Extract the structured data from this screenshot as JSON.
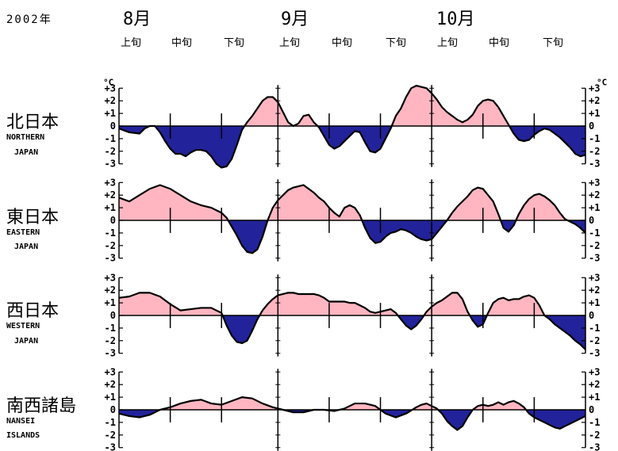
{
  "header": {
    "year": "2002年",
    "months": [
      "8月",
      "9月",
      "10月"
    ],
    "dekads": [
      "上旬",
      "中旬",
      "下旬",
      "上旬",
      "中旬",
      "下旬",
      "上旬",
      "中旬",
      "下旬"
    ]
  },
  "colors": {
    "positive": "#ffb6c1",
    "negative": "#22229a",
    "line": "#000000"
  },
  "chart_data": [
    {
      "type": "area",
      "region_jp": "北日本",
      "region_en": [
        "NORTHERN",
        "JAPAN"
      ],
      "unit_label": "°C",
      "ylim": [
        -3,
        3
      ],
      "yticks": [
        "+3",
        "+2",
        "+1",
        "0",
        "-1",
        "-2",
        "-3"
      ],
      "x_days": [
        1,
        3,
        5,
        6,
        7,
        8,
        9,
        10,
        11,
        12,
        13,
        14,
        15,
        16,
        17,
        18,
        19,
        20,
        21,
        22,
        23,
        24,
        25,
        26,
        27,
        28,
        29,
        30,
        31,
        32,
        33,
        34,
        35,
        36,
        37,
        38,
        39,
        40,
        41,
        42,
        43,
        44,
        45,
        46,
        47,
        48,
        49,
        50,
        51,
        52,
        53,
        54,
        55,
        56,
        57,
        58,
        59,
        60,
        61,
        62,
        63,
        64,
        65,
        66,
        67,
        68,
        69,
        70,
        71,
        72,
        73,
        74,
        75,
        76,
        77,
        78,
        79,
        80,
        81,
        82,
        83,
        84,
        85,
        86,
        87,
        88,
        89,
        90,
        91,
        92
      ],
      "values": [
        -0.2,
        -0.5,
        -0.6,
        -0.2,
        0,
        0,
        -0.5,
        -1.2,
        -1.8,
        -2.2,
        -2.2,
        -2.4,
        -2.1,
        -1.9,
        -1.9,
        -2,
        -2.4,
        -3,
        -3.3,
        -3.2,
        -2.6,
        -1.5,
        -0.3,
        0.3,
        0.8,
        1.4,
        2,
        2.3,
        2.3,
        1.9,
        1.1,
        0.3,
        0,
        0.2,
        0.8,
        0.9,
        0.3,
        -0.1,
        -0.8,
        -1.5,
        -1.8,
        -1.6,
        -1.2,
        -0.8,
        -0.4,
        -0.5,
        -1.3,
        -2,
        -2.1,
        -1.8,
        -1,
        -0.2,
        0.8,
        1.4,
        2.3,
        3,
        3.2,
        3.1,
        3,
        2.6,
        2.1,
        1.5,
        1.1,
        0.8,
        0.5,
        0.3,
        0.5,
        0.9,
        1.6,
        2,
        2.1,
        2,
        1.5,
        0.8,
        0.1,
        -0.6,
        -1.1,
        -1.2,
        -1.1,
        -0.7,
        -0.4,
        -0.2,
        -0.3,
        -0.6,
        -0.9,
        -1.3,
        -1.7,
        -2.2,
        -2.4,
        -2.3
      ]
    },
    {
      "type": "area",
      "region_jp": "東日本",
      "region_en": [
        "EASTERN",
        "JAPAN"
      ],
      "ylim": [
        -3,
        3
      ],
      "yticks": [
        "+3",
        "+2",
        "+1",
        "0",
        "-1",
        "-2",
        "-3"
      ],
      "x_days": [
        1,
        3,
        5,
        7,
        9,
        11,
        13,
        15,
        17,
        19,
        21,
        22,
        23,
        24,
        25,
        26,
        27,
        28,
        29,
        30,
        31,
        32,
        33,
        34,
        35,
        36,
        37,
        38,
        39,
        40,
        41,
        42,
        43,
        44,
        45,
        46,
        47,
        48,
        49,
        50,
        51,
        52,
        53,
        54,
        55,
        56,
        57,
        58,
        59,
        60,
        61,
        62,
        63,
        64,
        65,
        66,
        67,
        68,
        69,
        70,
        71,
        72,
        73,
        74,
        75,
        76,
        77,
        78,
        79,
        80,
        81,
        82,
        83,
        84,
        85,
        86,
        87,
        88,
        89,
        90,
        91,
        92
      ],
      "values": [
        1.8,
        1.5,
        2,
        2.5,
        2.8,
        2.5,
        2,
        1.5,
        1.2,
        1,
        0.6,
        0.2,
        -0.5,
        -1.2,
        -2,
        -2.5,
        -2.6,
        -2.3,
        -1.3,
        0,
        1,
        1.6,
        2,
        2.4,
        2.6,
        2.7,
        2.8,
        2.5,
        2.2,
        1.8,
        1.5,
        1,
        0.6,
        0.3,
        1,
        1.2,
        1,
        0.4,
        -0.6,
        -1.4,
        -1.8,
        -1.7,
        -1.3,
        -1,
        -0.9,
        -0.7,
        -0.8,
        -1,
        -1.3,
        -1.5,
        -1.6,
        -1.5,
        -1,
        -0.5,
        0,
        0.6,
        1.1,
        1.5,
        1.9,
        2.4,
        2.6,
        2.5,
        2,
        1.5,
        0.5,
        -0.6,
        -0.9,
        -0.4,
        0.5,
        1.2,
        1.7,
        2,
        2.1,
        1.9,
        1.6,
        1.2,
        0.6,
        0.1,
        -0.1,
        -0.3,
        -0.6,
        -1.0
      ]
    },
    {
      "type": "area",
      "region_jp": "西日本",
      "region_en": [
        "WESTERN",
        "JAPAN"
      ],
      "ylim": [
        -3,
        3
      ],
      "yticks": [
        "+3",
        "+2",
        "+1",
        "0",
        "-1",
        "-2",
        "-3"
      ],
      "x_days": [
        1,
        3,
        5,
        7,
        9,
        11,
        13,
        15,
        17,
        19,
        21,
        22,
        23,
        24,
        25,
        26,
        27,
        28,
        29,
        30,
        31,
        32,
        33,
        34,
        35,
        36,
        37,
        38,
        39,
        40,
        41,
        42,
        43,
        44,
        45,
        46,
        47,
        48,
        49,
        50,
        51,
        52,
        53,
        54,
        55,
        56,
        57,
        58,
        59,
        60,
        61,
        62,
        63,
        64,
        65,
        66,
        67,
        68,
        69,
        70,
        71,
        72,
        73,
        74,
        75,
        76,
        77,
        78,
        79,
        80,
        81,
        82,
        83,
        84,
        85,
        86,
        87,
        88,
        89,
        90,
        91,
        92
      ],
      "values": [
        1.4,
        1.5,
        1.8,
        1.8,
        1.5,
        0.9,
        0.4,
        0.5,
        0.6,
        0.6,
        0.2,
        -0.8,
        -1.6,
        -2.1,
        -2.2,
        -2,
        -1.2,
        -0.3,
        0.4,
        0.9,
        1.3,
        1.6,
        1.7,
        1.8,
        1.8,
        1.7,
        1.7,
        1.7,
        1.7,
        1.6,
        1.4,
        1.1,
        1.1,
        1.1,
        1.1,
        1.0,
        1.0,
        0.8,
        0.6,
        0.3,
        0.2,
        0.3,
        0.4,
        0.5,
        0.2,
        -0.3,
        -0.8,
        -1.1,
        -0.8,
        -0.3,
        0.3,
        0.7,
        1.0,
        1.2,
        1.5,
        1.8,
        1.8,
        1.3,
        0.3,
        -0.4,
        -0.9,
        -0.7,
        0.2,
        1.0,
        1.3,
        1.4,
        1.2,
        1.3,
        1.3,
        1.5,
        1.6,
        1.4,
        0.8,
        0,
        -0.3,
        -0.7,
        -1.0,
        -1.3,
        -1.6,
        -2,
        -2.3,
        -2.7
      ]
    },
    {
      "type": "area",
      "region_jp": "南西諸島",
      "region_en": [
        "NANSEI",
        "ISLANDS"
      ],
      "ylim": [
        -3,
        3
      ],
      "yticks": [
        "+3",
        "+2",
        "+1",
        "0",
        "-1",
        "-2",
        "-3"
      ],
      "x_days": [
        1,
        3,
        5,
        7,
        9,
        11,
        13,
        15,
        17,
        19,
        21,
        23,
        25,
        27,
        29,
        31,
        33,
        35,
        37,
        39,
        41,
        43,
        45,
        47,
        49,
        51,
        53,
        55,
        57,
        59,
        60,
        61,
        62,
        63,
        64,
        65,
        66,
        67,
        68,
        69,
        70,
        71,
        72,
        73,
        74,
        75,
        76,
        77,
        78,
        79,
        80,
        81,
        82,
        83,
        84,
        85,
        86,
        87,
        88,
        89,
        90,
        91,
        92
      ],
      "values": [
        -0.3,
        -0.5,
        -0.6,
        -0.4,
        0,
        0.2,
        0.5,
        0.7,
        0.8,
        0.5,
        0.4,
        0.7,
        1.0,
        0.9,
        0.5,
        0.2,
        0,
        -0.2,
        -0.2,
        0,
        0,
        -0.1,
        0.1,
        0.5,
        0.5,
        0.3,
        -0.3,
        -0.6,
        -0.3,
        0.2,
        0.4,
        0.5,
        0.3,
        0.1,
        -0.3,
        -0.9,
        -1.3,
        -1.6,
        -1.3,
        -0.6,
        0,
        0.3,
        0.4,
        0.3,
        0.4,
        0.6,
        0.4,
        0.6,
        0.7,
        0.5,
        0.2,
        -0.3,
        -0.6,
        -0.8,
        -1,
        -1.2,
        -1.4,
        -1.5,
        -1.3,
        -1.1,
        -0.9,
        -0.7,
        -0.5
      ]
    }
  ]
}
